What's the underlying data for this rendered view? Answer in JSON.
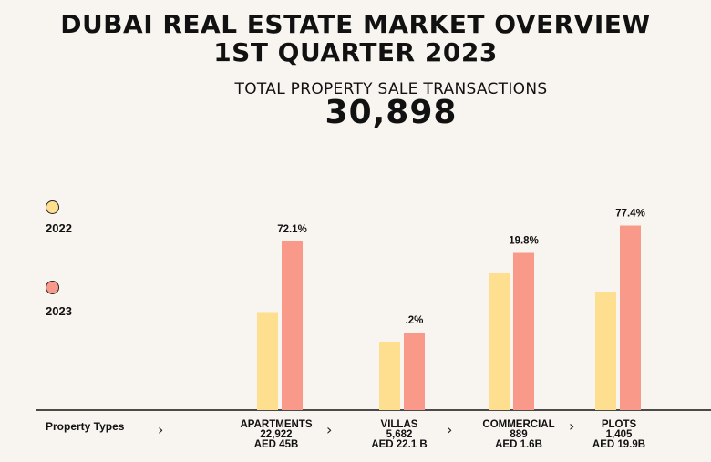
{
  "header": {
    "title_line1": "DUBAI REAL ESTATE MARKET OVERVIEW",
    "title_line2": "1ST QUARTER 2023",
    "subtitle": "TOTAL PROPERTY SALE TRANSACTIONS",
    "total": "30,898"
  },
  "legend": {
    "items": [
      {
        "label": "2022",
        "color": "#fddf8f"
      },
      {
        "label": "2023",
        "color": "#f9998a"
      }
    ]
  },
  "axis": {
    "x_title": "Property Types",
    "chevron": "›"
  },
  "chart_data": {
    "type": "bar",
    "categories": [
      {
        "name": "APARTMENTS",
        "count": "22,922",
        "value": "AED 45B"
      },
      {
        "name": "VILLAS",
        "count": "5,682",
        "value": "AED 22.1 B"
      },
      {
        "name": "COMMERCIAL",
        "count": "889",
        "value": "AED 1.6B"
      },
      {
        "name": "PLOTS",
        "count": "1,405",
        "value": "AED 19.9B"
      }
    ],
    "series": [
      {
        "name": "2022",
        "color": "#fddf8f",
        "values": [
          43,
          30,
          60,
          52
        ]
      },
      {
        "name": "2023",
        "color": "#f9998a",
        "values": [
          74,
          34,
          69,
          81
        ]
      }
    ],
    "annotations": [
      "72.1%",
      ".2%",
      "19.8%",
      "77.4%"
    ],
    "ylim": [
      0,
      100
    ],
    "grid": false
  }
}
